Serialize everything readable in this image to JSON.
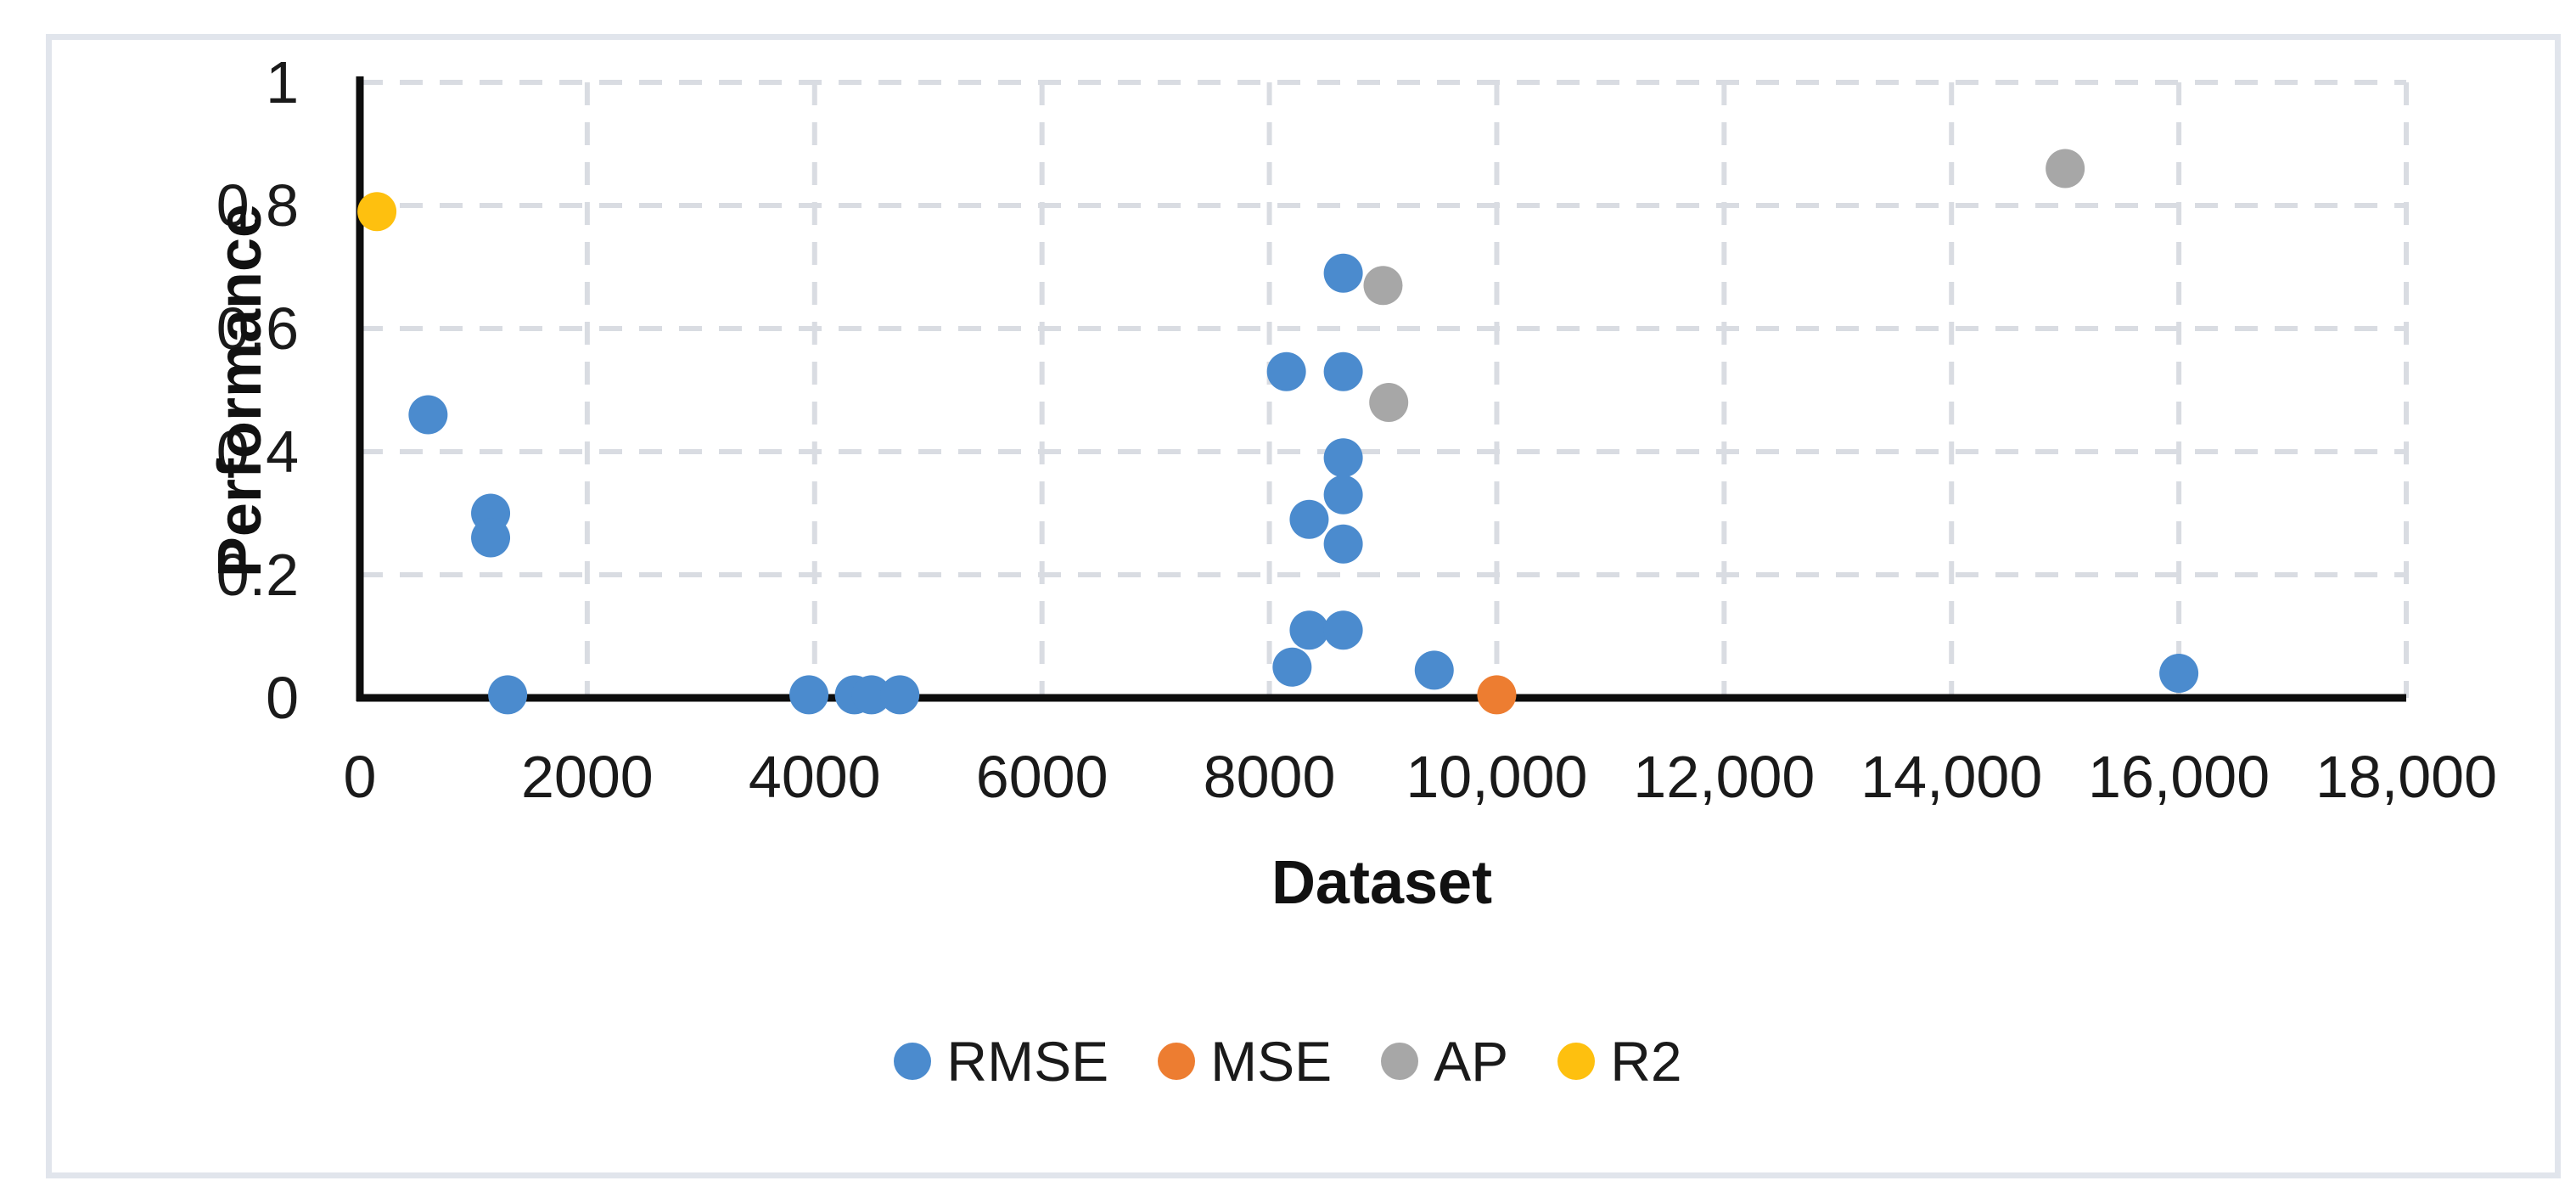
{
  "figure": {
    "background_color": "#ffffff",
    "border_color": "#e1e5ec"
  },
  "chart_data": {
    "type": "scatter",
    "title": "",
    "xlabel": "Dataset",
    "ylabel": "Performance",
    "xlim": [
      0,
      18000
    ],
    "ylim": [
      0,
      1
    ],
    "grid": {
      "style": "dashed",
      "color": "#d9dce2"
    },
    "axis_color": "#0d0d0d",
    "text_color": "#1a1a1a",
    "legend_position": "bottom",
    "x_ticks": [
      {
        "value": 0,
        "label": "0"
      },
      {
        "value": 2000,
        "label": "2000"
      },
      {
        "value": 4000,
        "label": "4000"
      },
      {
        "value": 6000,
        "label": "6000"
      },
      {
        "value": 8000,
        "label": "8000"
      },
      {
        "value": 10000,
        "label": "10,000"
      },
      {
        "value": 12000,
        "label": "12,000"
      },
      {
        "value": 14000,
        "label": "14,000"
      },
      {
        "value": 16000,
        "label": "16,000"
      },
      {
        "value": 18000,
        "label": "18,000"
      }
    ],
    "y_ticks": [
      {
        "value": 0,
        "label": "0"
      },
      {
        "value": 0.2,
        "label": "0.2"
      },
      {
        "value": 0.4,
        "label": "0.4"
      },
      {
        "value": 0.6,
        "label": "0.6"
      },
      {
        "value": 0.8,
        "label": "0.8"
      },
      {
        "value": 1,
        "label": "1"
      }
    ],
    "series": [
      {
        "name": "RMSE",
        "color": "#4b8bce",
        "points": [
          [
            600,
            0.46
          ],
          [
            1150,
            0.3
          ],
          [
            1150,
            0.26
          ],
          [
            1300,
            0.005
          ],
          [
            3950,
            0.005
          ],
          [
            4350,
            0.005
          ],
          [
            4500,
            0.005
          ],
          [
            4750,
            0.005
          ],
          [
            8150,
            0.53
          ],
          [
            8650,
            0.69
          ],
          [
            8650,
            0.53
          ],
          [
            8650,
            0.39
          ],
          [
            8650,
            0.33
          ],
          [
            8350,
            0.29
          ],
          [
            8650,
            0.25
          ],
          [
            8350,
            0.11
          ],
          [
            8650,
            0.11
          ],
          [
            8200,
            0.05
          ],
          [
            9450,
            0.045
          ],
          [
            16000,
            0.04
          ]
        ]
      },
      {
        "name": "MSE",
        "color": "#ed7d31",
        "points": [
          [
            10000,
            0.005
          ]
        ]
      },
      {
        "name": "AP",
        "color": "#a7a7a7",
        "points": [
          [
            9000,
            0.67
          ],
          [
            9050,
            0.48
          ],
          [
            15000,
            0.86
          ]
        ]
      },
      {
        "name": "R2",
        "color": "#fec00f",
        "points": [
          [
            150,
            0.79
          ]
        ]
      }
    ]
  }
}
